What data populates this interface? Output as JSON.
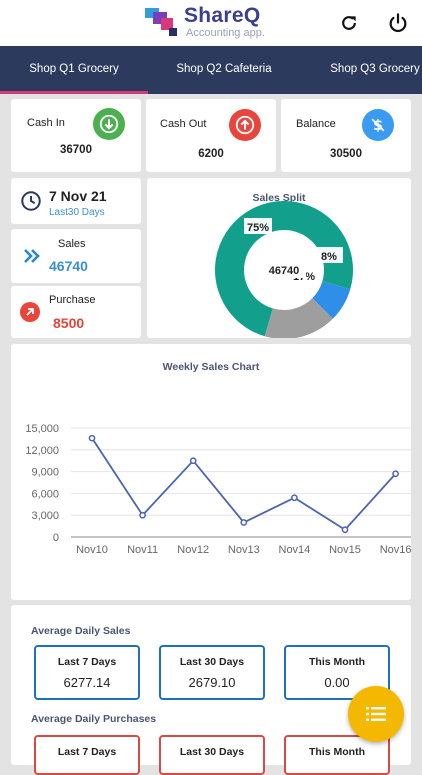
{
  "app": {
    "name": "ShareQ",
    "tagline": "Accounting app."
  },
  "header": {
    "refresh_icon": "refresh-icon",
    "power_icon": "power-icon"
  },
  "tabs": [
    {
      "label": "Shop Q1 Grocery",
      "active": true
    },
    {
      "label": "Shop Q2 Cafeteria",
      "active": false
    },
    {
      "label": "Shop Q3 Grocery",
      "active": false
    }
  ],
  "summary": {
    "cash_in": {
      "label": "Cash In",
      "value": "36700",
      "icon": "arrow-down-icon",
      "color": "#4caf50"
    },
    "cash_out": {
      "label": "Cash Out",
      "value": "6200",
      "icon": "arrow-up-icon",
      "color": "#e8453c"
    },
    "balance": {
      "label": "Balance",
      "value": "30500",
      "icon": "dollar-slash-icon",
      "color": "#3a9bf0"
    }
  },
  "date_card": {
    "date": "7 Nov 21",
    "range": "Last30 Days",
    "icon": "clock-icon"
  },
  "sales_card": {
    "label": "Sales",
    "value": "46740",
    "icon": "double-chevron-icon"
  },
  "purchase_card": {
    "label": "Purchase",
    "value": "8500",
    "icon": "arrow-up-right-icon"
  },
  "sales_split": {
    "title": "Sales Split",
    "center": "46740",
    "slices": [
      {
        "label": "75%",
        "value": 75,
        "color": "#12a08c"
      },
      {
        "label": "8%",
        "value": 8,
        "color": "#2f8fe8"
      },
      {
        "label": "17%",
        "value": 17,
        "color": "#9e9e9e"
      }
    ]
  },
  "chart_data": {
    "type": "line",
    "title": "Weekly Sales Chart",
    "categories": [
      "Nov10",
      "Nov11",
      "Nov12",
      "Nov13",
      "Nov14",
      "Nov15",
      "Nov16"
    ],
    "values": [
      13600,
      3000,
      10500,
      2000,
      5400,
      1000,
      8700
    ],
    "yticks": [
      "15,000",
      "12,000",
      "9,000",
      "6,000",
      "3,000",
      "0"
    ],
    "ylim": [
      0,
      15000
    ],
    "color": "#4a64b0",
    "grid": true
  },
  "avg_sales": {
    "title": "Average Daily Sales",
    "boxes": [
      {
        "label": "Last 7 Days",
        "value": "6277.14"
      },
      {
        "label": "Last 30 Days",
        "value": "2679.10"
      },
      {
        "label": "This Month",
        "value": "0.00"
      }
    ]
  },
  "avg_purchases": {
    "title": "Average Daily Purchases",
    "boxes": [
      {
        "label": "Last 7 Days"
      },
      {
        "label": "Last 30 Days"
      },
      {
        "label": "This Month"
      }
    ]
  },
  "fab": {
    "icon": "list-icon"
  }
}
